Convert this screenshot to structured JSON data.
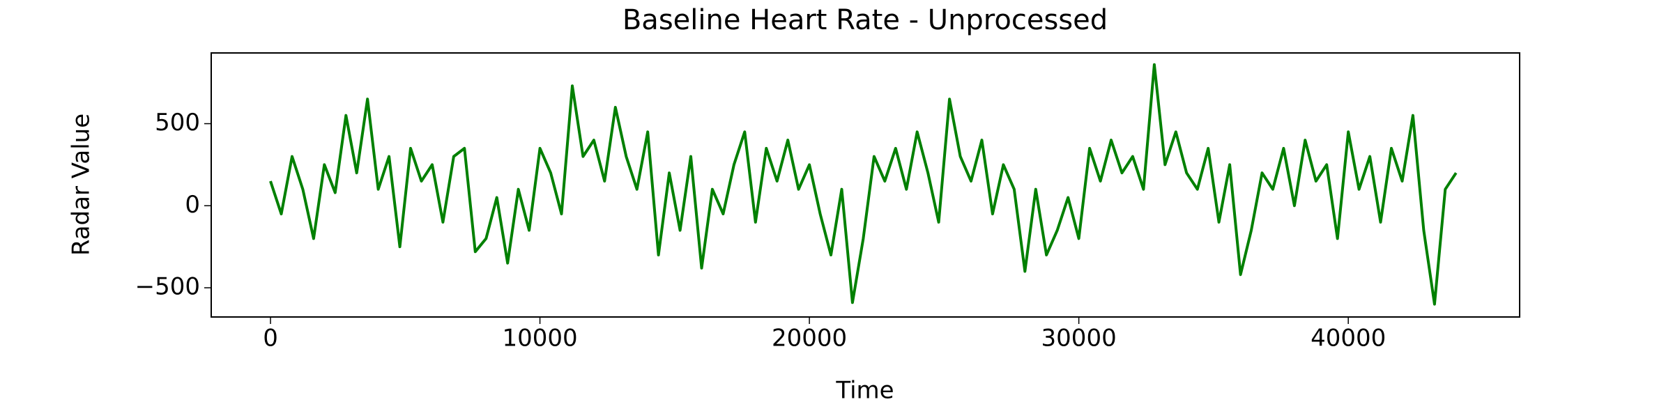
{
  "chart_data": {
    "type": "line",
    "title": "Baseline Heart Rate - Unprocessed",
    "x_label": "Time",
    "y_label": "Radar Value",
    "x": [
      0,
      400,
      800,
      1200,
      1600,
      2000,
      2400,
      2800,
      3200,
      3600,
      4000,
      4400,
      4800,
      5200,
      5600,
      6000,
      6400,
      6800,
      7200,
      7600,
      8000,
      8400,
      8800,
      9200,
      9600,
      10000,
      10400,
      10800,
      11200,
      11600,
      12000,
      12400,
      12800,
      13200,
      13600,
      14000,
      14400,
      14800,
      15200,
      15600,
      16000,
      16400,
      16800,
      17200,
      17600,
      18000,
      18400,
      18800,
      19200,
      19600,
      20000,
      20400,
      20800,
      21200,
      21600,
      22000,
      22400,
      22800,
      23200,
      23600,
      24000,
      24400,
      24800,
      25200,
      25600,
      26000,
      26400,
      26800,
      27200,
      27600,
      28000,
      28400,
      28800,
      29200,
      29600,
      30000,
      30400,
      30800,
      31200,
      31600,
      32000,
      32400,
      32800,
      33200,
      33600,
      34000,
      34400,
      34800,
      35200,
      35600,
      36000,
      36400,
      36800,
      37200,
      37600,
      38000,
      38400,
      38800,
      39200,
      39600,
      40000,
      40400,
      40800,
      41200,
      41600,
      42000,
      42400,
      42800,
      43200,
      43600,
      44000
    ],
    "series": [
      {
        "name": "Radar Value",
        "color": "#008000",
        "values": [
          150,
          -50,
          300,
          100,
          -200,
          250,
          80,
          550,
          200,
          650,
          100,
          300,
          -250,
          350,
          150,
          250,
          -100,
          300,
          350,
          -280,
          -200,
          50,
          -350,
          100,
          -150,
          350,
          200,
          -50,
          730,
          300,
          400,
          150,
          600,
          300,
          100,
          450,
          -300,
          200,
          -150,
          300,
          -380,
          100,
          -50,
          250,
          450,
          -100,
          350,
          150,
          400,
          100,
          250,
          -50,
          -300,
          100,
          -590,
          -200,
          300,
          150,
          350,
          100,
          450,
          200,
          -100,
          650,
          300,
          150,
          400,
          -50,
          250,
          100,
          -400,
          100,
          -300,
          -150,
          50,
          -200,
          350,
          150,
          400,
          200,
          300,
          100,
          860,
          250,
          450,
          200,
          100,
          350,
          -100,
          250,
          -420,
          -150,
          200,
          100,
          350,
          0,
          400,
          150,
          250,
          -200,
          450,
          100,
          300,
          -100,
          350,
          150,
          550,
          -150,
          -600,
          100,
          200
        ]
      }
    ],
    "xlim": [
      -2200,
      46360
    ],
    "ylim": [
      -678,
      931
    ],
    "xticks": [
      0,
      10000,
      20000,
      30000,
      40000
    ],
    "yticks": [
      {
        "value": -500,
        "label": "−500"
      },
      0,
      500
    ],
    "grid": false
  }
}
